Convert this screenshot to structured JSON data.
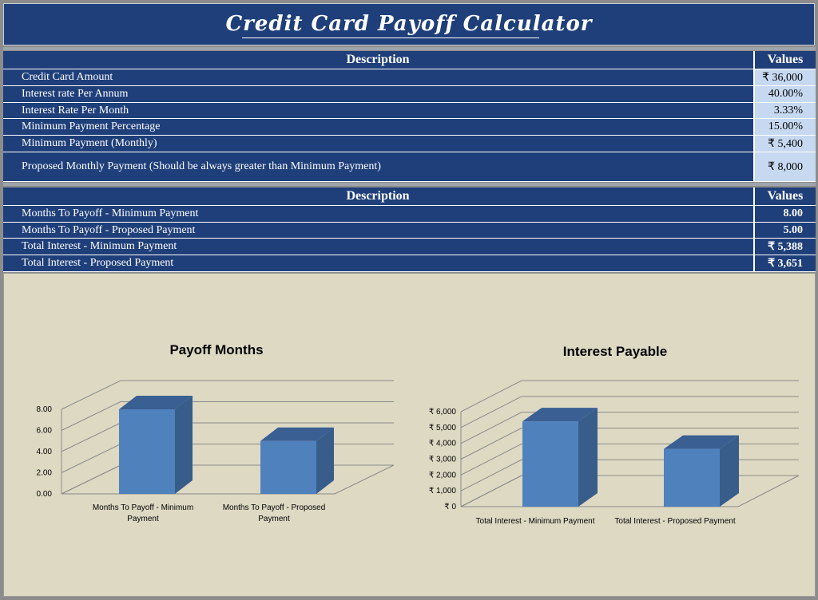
{
  "header": {
    "title": "Credit Card Payoff Calculator"
  },
  "table1": {
    "col_description": "Description",
    "col_values": "Values",
    "rows": [
      {
        "label": "Credit Card Amount",
        "value": "₹ 36,000"
      },
      {
        "label": "Interest rate Per Annum",
        "value": "40.00%"
      },
      {
        "label": "Interest Rate Per Month",
        "value": "3.33%"
      },
      {
        "label": "Minimum Payment Percentage",
        "value": "15.00%"
      },
      {
        "label": "Minimum Payment (Monthly)",
        "value": "₹ 5,400"
      },
      {
        "label": "Proposed Monthly Payment (Should be always greater than Minimum Payment)",
        "value": "₹ 8,000"
      }
    ]
  },
  "table2": {
    "col_description": "Description",
    "col_values": "Values",
    "rows": [
      {
        "label": "Months To Payoff - Minimum Payment",
        "value": "8.00"
      },
      {
        "label": "Months To Payoff - Proposed Payment",
        "value": "5.00"
      },
      {
        "label": "Total Interest - Minimum Payment",
        "value": "₹ 5,388"
      },
      {
        "label": "Total Interest - Proposed Payment",
        "value": "₹ 3,651"
      }
    ]
  },
  "colors": {
    "navy": "#1f3f7a",
    "light_cell": "#c6d9f1",
    "bar_front": "#4f81bd",
    "bar_side": "#385d8a",
    "bar_top": "#3a5f93",
    "chart_bg": "#ddd9c3"
  },
  "chart_data": [
    {
      "type": "bar",
      "title": "Payoff Months",
      "categories": [
        "Months To Payoff - Minimum Payment",
        "Months To Payoff - Proposed Payment"
      ],
      "category_lines": [
        [
          "Months To Payoff - Minimum",
          "Payment"
        ],
        [
          "Months To Payoff - Proposed",
          "Payment"
        ]
      ],
      "values": [
        8.0,
        5.0
      ],
      "ylim": [
        0,
        8
      ],
      "ticks": [
        "0.00",
        "2.00",
        "4.00",
        "6.00",
        "8.00"
      ],
      "style": "3d",
      "grid": true,
      "legend": "none"
    },
    {
      "type": "bar",
      "title": "Interest Payable",
      "categories": [
        "Total Interest - Minimum Payment",
        "Total Interest - Proposed Payment"
      ],
      "category_lines": [
        [
          "Total Interest - Minimum Payment"
        ],
        [
          "Total Interest - Proposed Payment"
        ]
      ],
      "values": [
        5388,
        3651
      ],
      "ylim": [
        0,
        6000
      ],
      "ticks": [
        "₹ 0",
        "₹ 1,000",
        "₹ 2,000",
        "₹ 3,000",
        "₹ 4,000",
        "₹ 5,000",
        "₹ 6,000"
      ],
      "style": "3d",
      "grid": true,
      "legend": "none"
    }
  ]
}
